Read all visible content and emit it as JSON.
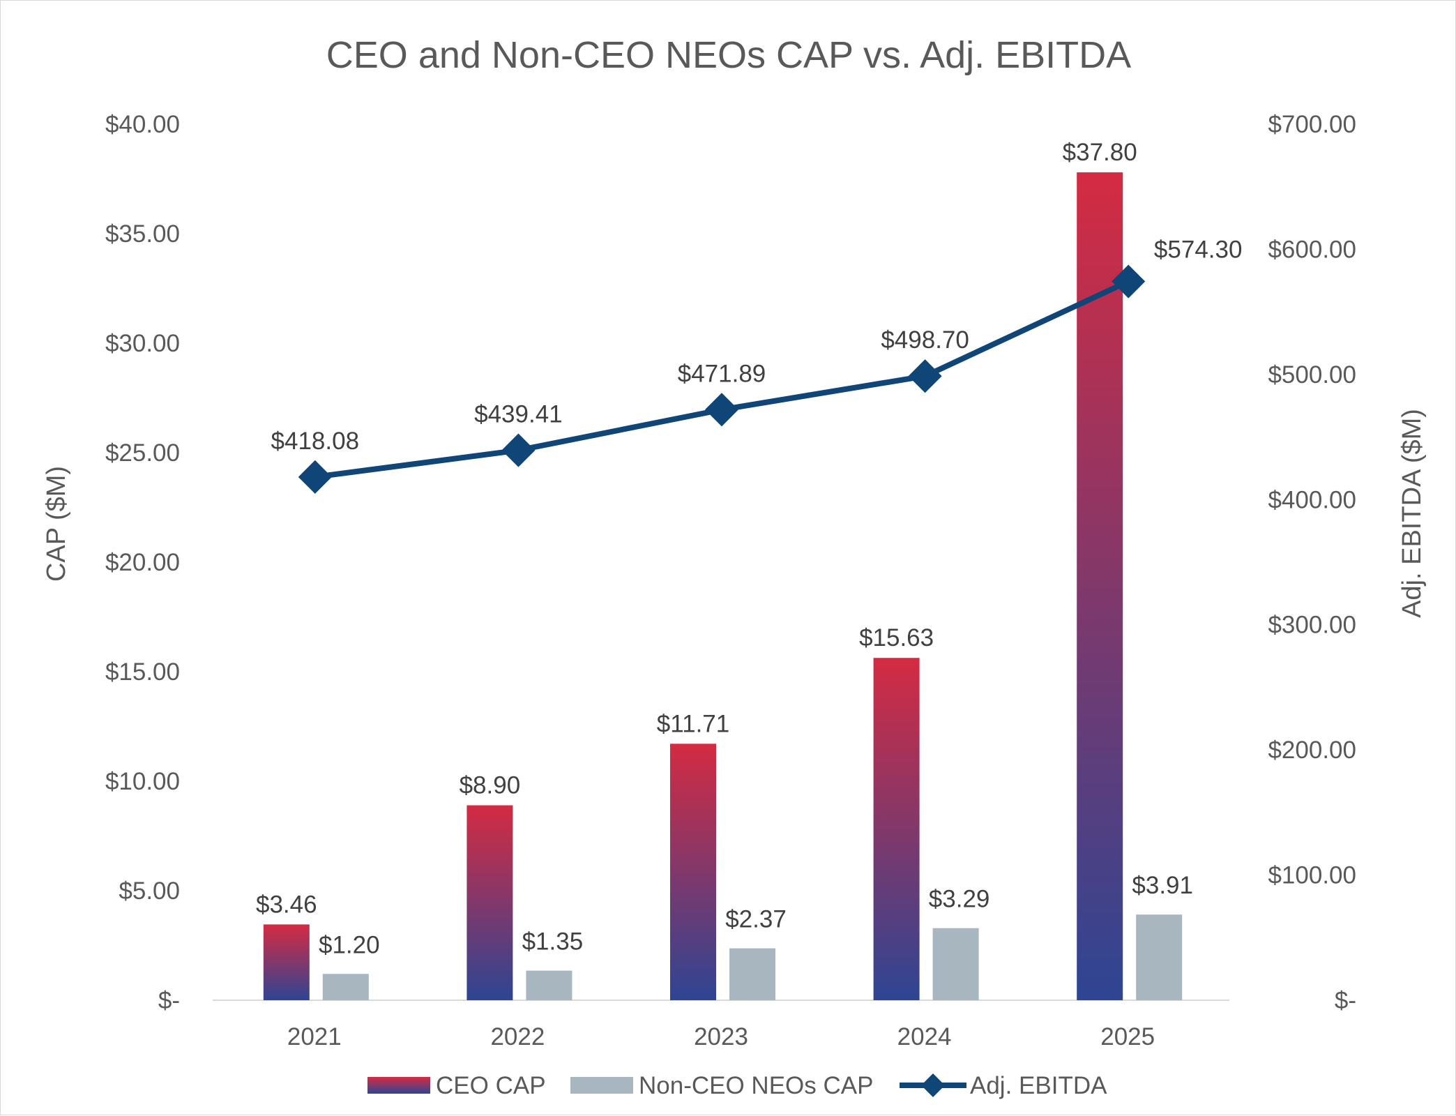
{
  "chart_data": {
    "type": "bar",
    "title": "CEO and Non-CEO NEOs CAP vs. Adj. EBITDA",
    "categories": [
      "2021",
      "2022",
      "2023",
      "2024",
      "2025"
    ],
    "series": [
      {
        "name": "CEO CAP",
        "type": "bar",
        "axis": "left",
        "values": [
          3.46,
          8.9,
          11.71,
          15.63,
          37.8
        ],
        "labels": [
          "$3.46",
          "$8.90",
          "$11.71",
          "$15.63",
          "$37.80"
        ],
        "color_top": "#D42B42",
        "color_bottom": "#2E4593"
      },
      {
        "name": "Non-CEO NEOs CAP",
        "type": "bar",
        "axis": "left",
        "values": [
          1.2,
          1.35,
          2.37,
          3.29,
          3.91
        ],
        "labels": [
          "$1.20",
          "$1.35",
          "$2.37",
          "$3.29",
          "$3.91"
        ],
        "color": "#A7B6BF"
      },
      {
        "name": "Adj. EBITDA",
        "type": "line",
        "axis": "right",
        "values": [
          418.08,
          439.41,
          471.89,
          498.7,
          574.3
        ],
        "labels": [
          "$418.08",
          "$439.41",
          "$471.89",
          "$498.70",
          "$574.30"
        ],
        "color": "#0F4577",
        "marker": "diamond"
      }
    ],
    "y_left": {
      "label": "CAP ($M)",
      "range": [
        0,
        40
      ],
      "ticks": [
        0,
        5,
        10,
        15,
        20,
        25,
        30,
        35,
        40
      ],
      "tick_labels": [
        "$-",
        "$5.00",
        "$10.00",
        "$15.00",
        "$20.00",
        "$25.00",
        "$30.00",
        "$35.00",
        "$40.00"
      ]
    },
    "y_right": {
      "label": "Adj. EBITDA ($M)",
      "range": [
        0,
        700
      ],
      "ticks": [
        0,
        100,
        200,
        300,
        400,
        500,
        600,
        700
      ],
      "tick_labels": [
        "$-",
        "$100.00",
        "$200.00",
        "$300.00",
        "$400.00",
        "$500.00",
        "$600.00",
        "$700.00"
      ]
    },
    "grid": false,
    "legend_position": "bottom"
  }
}
